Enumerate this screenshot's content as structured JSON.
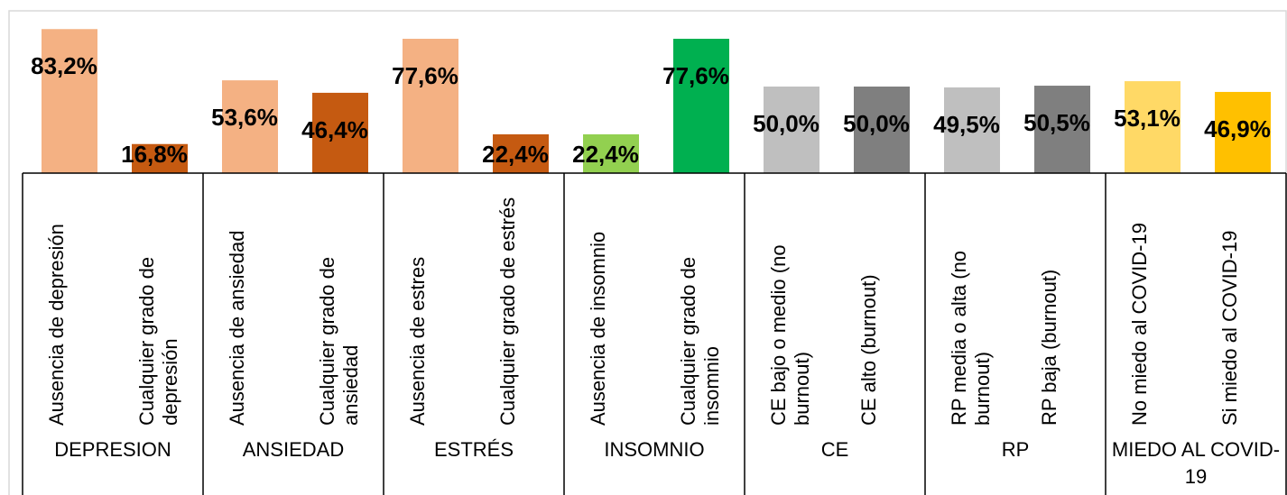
{
  "chart_data": {
    "type": "bar",
    "categories": [
      "Ausencia de depresión",
      "Cualquier grado de depresión",
      "Ausencia de ansiedad",
      "Cualquier grado de ansiedad",
      "Ausencia de estres",
      "Cualquier grado de estrés",
      "Ausencia de insomnio",
      "Cualquier grado de insomnio",
      "CE bajo o medio (no burnout)",
      "CE alto (burnout)",
      "RP media o alta (no burnout)",
      "RP baja (burnout)",
      "No miedo al COVID-19",
      "Si miedo al COVID-19"
    ],
    "values": [
      83.2,
      16.8,
      53.6,
      46.4,
      77.6,
      22.4,
      22.4,
      77.6,
      50.0,
      50.0,
      49.5,
      50.5,
      53.1,
      46.9
    ],
    "value_labels": [
      "83,2%",
      "16,8%",
      "53,6%",
      "46,4%",
      "77,6%",
      "22,4%",
      "22,4%",
      "77,6%",
      "50,0%",
      "50,0%",
      "49,5%",
      "50,5%",
      "53,1%",
      "46,9%"
    ],
    "colors": [
      "#f4b183",
      "#c55a11",
      "#f4b183",
      "#c55a11",
      "#f4b183",
      "#c55a11",
      "#92d050",
      "#00b050",
      "#bfbfbf",
      "#7f7f7f",
      "#bfbfbf",
      "#7f7f7f",
      "#ffd966",
      "#ffc000"
    ],
    "groups": [
      "DEPRESION",
      "ANSIEDAD",
      "ESTRÉS",
      "INSOMNIO",
      "CE",
      "RP",
      "MIEDO AL COVID-19"
    ],
    "ylim": [
      0,
      100
    ]
  }
}
